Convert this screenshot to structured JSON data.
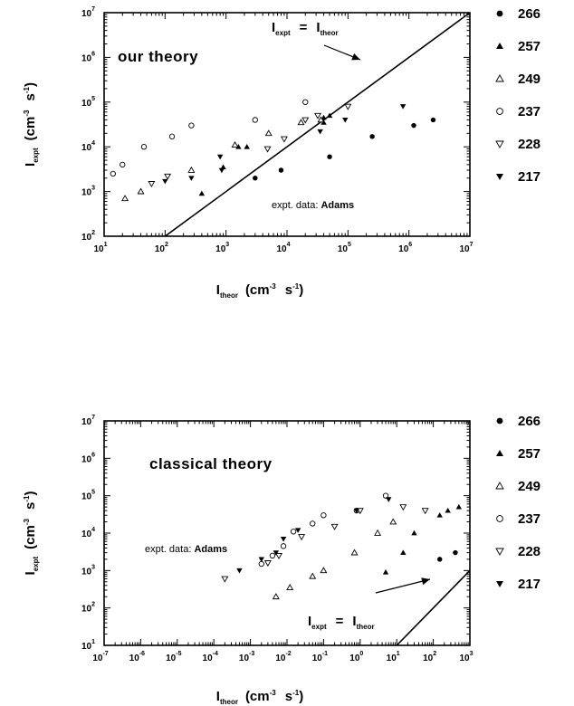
{
  "chart_data": [
    {
      "type": "scatter",
      "scale": "log-log",
      "xlim": [
        10,
        10000000
      ],
      "ylim": [
        100,
        10000000
      ],
      "x_ticks": [
        {
          "base": "10",
          "exp": "1"
        },
        {
          "base": "10",
          "exp": "2"
        },
        {
          "base": "10",
          "exp": "3"
        },
        {
          "base": "10",
          "exp": "4"
        },
        {
          "base": "10",
          "exp": "5"
        },
        {
          "base": "10",
          "exp": "6"
        },
        {
          "base": "10",
          "exp": "7"
        }
      ],
      "y_ticks": [
        {
          "base": "10",
          "exp": "2"
        },
        {
          "base": "10",
          "exp": "3"
        },
        {
          "base": "10",
          "exp": "4"
        },
        {
          "base": "10",
          "exp": "5"
        },
        {
          "base": "10",
          "exp": "6"
        },
        {
          "base": "10",
          "exp": "7"
        }
      ],
      "ylabel": {
        "main": "I",
        "sub": "expt",
        "unit": "(cm",
        "unit_exp": "-3",
        "unit2": "s",
        "unit2_exp": "-1",
        "close": ")"
      },
      "xlabel": {
        "main": "I",
        "sub": "theor",
        "unit": "(cm",
        "unit_exp": "-3",
        "unit2": "s",
        "unit2_exp": "-1",
        "close": ")"
      },
      "annotations": {
        "title": "our   theory",
        "expt_prefix": "expt. data:",
        "expt_name": "Adams",
        "line_label": {
          "left": "I",
          "left_sub": "expt",
          "eq": "=",
          "right": "I",
          "right_sub": "theor"
        }
      },
      "reference_line": {
        "name": "y = x",
        "from": [
          100,
          100
        ],
        "to": [
          10000000,
          10000000
        ]
      },
      "series": [
        {
          "name": "266",
          "marker": "filled-circle",
          "points": [
            [
              3000,
              2000
            ],
            [
              8000,
              3000
            ],
            [
              50000,
              6000
            ],
            [
              250000,
              17000
            ],
            [
              1200000,
              30000
            ],
            [
              2500000,
              40000
            ]
          ]
        },
        {
          "name": "257",
          "marker": "filled-triangle-up",
          "points": [
            [
              400,
              900
            ],
            [
              900,
              3500
            ],
            [
              1600,
              10000
            ],
            [
              2200,
              10000
            ],
            [
              40000,
              35000
            ],
            [
              40000,
              45000
            ],
            [
              50000,
              50000
            ]
          ]
        },
        {
          "name": "249",
          "marker": "open-triangle-up",
          "points": [
            [
              22,
              700
            ],
            [
              40,
              1000
            ],
            [
              270,
              3000
            ],
            [
              1400,
              11000
            ],
            [
              5000,
              20000
            ],
            [
              17000,
              35000
            ],
            [
              36000,
              40000
            ]
          ]
        },
        {
          "name": "237",
          "marker": "open-circle",
          "points": [
            [
              14,
              2500
            ],
            [
              20,
              4000
            ],
            [
              45,
              10000
            ],
            [
              130,
              17000
            ],
            [
              270,
              30000
            ],
            [
              3000,
              40000
            ],
            [
              20000,
              100000
            ]
          ]
        },
        {
          "name": "228",
          "marker": "open-triangle-down",
          "points": [
            [
              60,
              1500
            ],
            [
              110,
              2200
            ],
            [
              4800,
              9000
            ],
            [
              9000,
              15000
            ],
            [
              20000,
              40000
            ],
            [
              32000,
              50000
            ],
            [
              100000,
              80000
            ]
          ]
        },
        {
          "name": "217",
          "marker": "filled-triangle-down",
          "points": [
            [
              100,
              1700
            ],
            [
              270,
              2000
            ],
            [
              800,
              6000
            ],
            [
              850,
              3000
            ],
            [
              35000,
              22000
            ],
            [
              90000,
              40000
            ],
            [
              800000,
              80000
            ]
          ]
        }
      ]
    },
    {
      "type": "scatter",
      "scale": "log-log",
      "xlim": [
        1e-07,
        1000
      ],
      "ylim": [
        10,
        10000000
      ],
      "x_ticks": [
        {
          "base": "10",
          "exp": "-7"
        },
        {
          "base": "10",
          "exp": "-6"
        },
        {
          "base": "10",
          "exp": "-5"
        },
        {
          "base": "10",
          "exp": "-4"
        },
        {
          "base": "10",
          "exp": "-3"
        },
        {
          "base": "10",
          "exp": "-2"
        },
        {
          "base": "10",
          "exp": "-1"
        },
        {
          "base": "10",
          "exp": "0"
        },
        {
          "base": "10",
          "exp": "1"
        },
        {
          "base": "10",
          "exp": "2"
        },
        {
          "base": "10",
          "exp": "3"
        }
      ],
      "y_ticks": [
        {
          "base": "10",
          "exp": "1"
        },
        {
          "base": "10",
          "exp": "2"
        },
        {
          "base": "10",
          "exp": "3"
        },
        {
          "base": "10",
          "exp": "4"
        },
        {
          "base": "10",
          "exp": "5"
        },
        {
          "base": "10",
          "exp": "6"
        },
        {
          "base": "10",
          "exp": "7"
        }
      ],
      "ylabel": {
        "main": "I",
        "sub": "expt",
        "unit": "(cm",
        "unit_exp": "-3",
        "unit2": "s",
        "unit2_exp": "-1",
        "close": ")"
      },
      "xlabel": {
        "main": "I",
        "sub": "theor",
        "unit": "(cm",
        "unit_exp": "-3",
        "unit2": "s",
        "unit2_exp": "-1",
        "close": ")"
      },
      "annotations": {
        "title": "classical   theory",
        "expt_prefix": "expt. data:",
        "expt_name": "Adams",
        "line_label": {
          "left": "I",
          "left_sub": "expt",
          "eq": "=",
          "right": "I",
          "right_sub": "theor"
        }
      },
      "reference_line": {
        "name": "y = x",
        "from": [
          10,
          10
        ],
        "to": [
          1000,
          1000
        ]
      },
      "series": [
        {
          "name": "266",
          "marker": "filled-circle",
          "points": [
            [
              150,
              2000
            ],
            [
              400,
              3000
            ]
          ]
        },
        {
          "name": "257",
          "marker": "filled-triangle-up",
          "points": [
            [
              5,
              900
            ],
            [
              15,
              3000
            ],
            [
              30,
              10000
            ],
            [
              150,
              30000
            ],
            [
              250,
              40000
            ],
            [
              500,
              50000
            ]
          ]
        },
        {
          "name": "249",
          "marker": "open-triangle-up",
          "points": [
            [
              0.005,
              200
            ],
            [
              0.012,
              350
            ],
            [
              0.05,
              700
            ],
            [
              0.1,
              1000
            ],
            [
              0.7,
              3000
            ],
            [
              3,
              10000
            ],
            [
              8,
              20000
            ]
          ]
        },
        {
          "name": "237",
          "marker": "open-circle",
          "points": [
            [
              0.002,
              1500
            ],
            [
              0.004,
              2500
            ],
            [
              0.008,
              4500
            ],
            [
              0.015,
              11000
            ],
            [
              0.05,
              18000
            ],
            [
              0.1,
              30000
            ],
            [
              0.8,
              40000
            ],
            [
              5,
              100000
            ]
          ]
        },
        {
          "name": "228",
          "marker": "open-triangle-down",
          "points": [
            [
              0.0002,
              600
            ],
            [
              0.003,
              1600
            ],
            [
              0.006,
              2500
            ],
            [
              0.025,
              8000
            ],
            [
              0.2,
              15000
            ],
            [
              1,
              40000
            ],
            [
              15,
              50000
            ],
            [
              60,
              40000
            ]
          ]
        },
        {
          "name": "217",
          "marker": "filled-triangle-down",
          "points": [
            [
              0.0005,
              1000
            ],
            [
              0.002,
              2000
            ],
            [
              0.005,
              3000
            ],
            [
              0.008,
              7000
            ],
            [
              0.02,
              12000
            ],
            [
              0.8,
              40000
            ],
            [
              6,
              80000
            ]
          ]
        }
      ]
    }
  ]
}
